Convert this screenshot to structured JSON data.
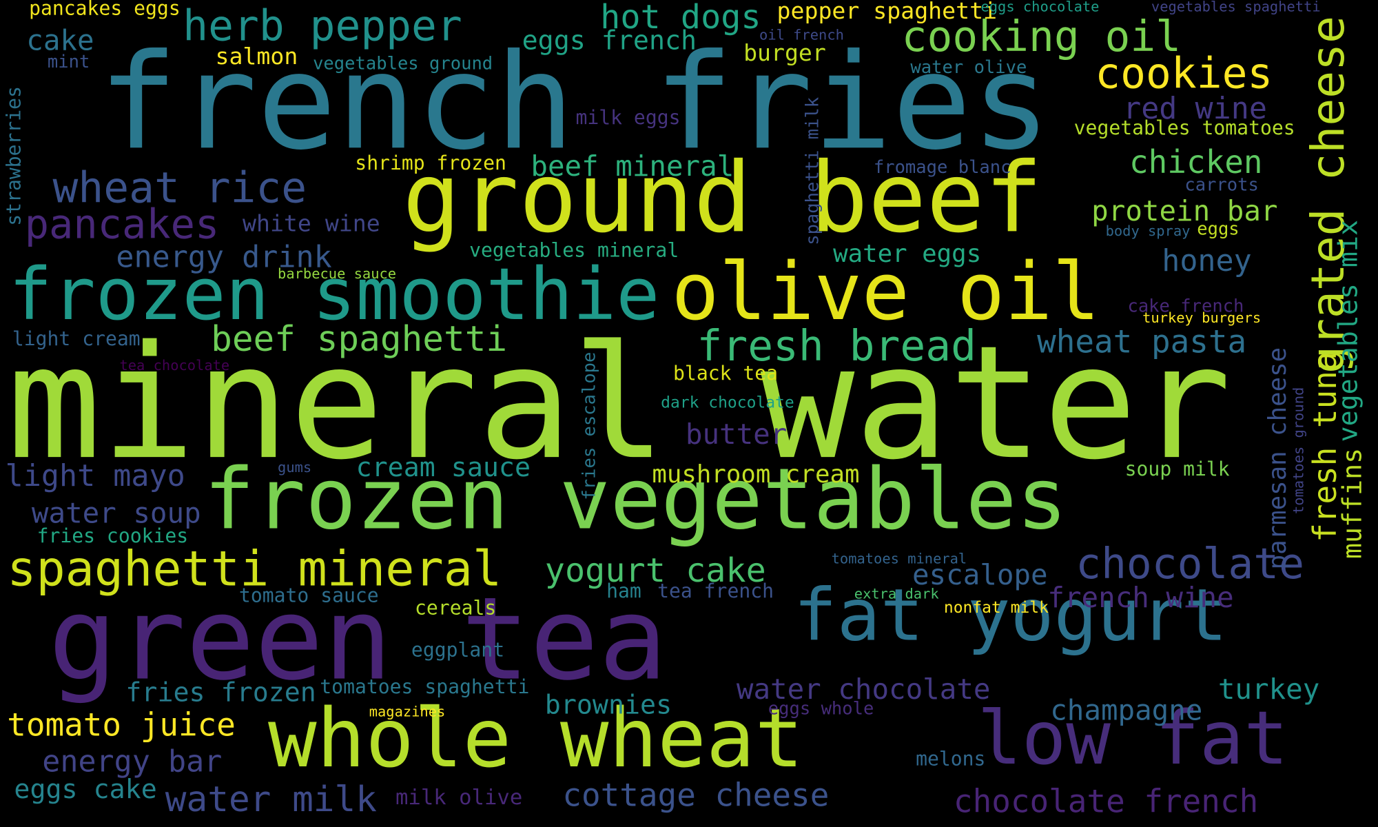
{
  "words": [
    {
      "text": "mineral water",
      "color": "#a0da39"
    },
    {
      "text": "french fries",
      "color": "#2a788e"
    },
    {
      "text": "ground beef",
      "color": "#d0e11c"
    },
    {
      "text": "green tea",
      "color": "#482475"
    },
    {
      "text": "frozen vegetables",
      "color": "#7ad151"
    },
    {
      "text": "frozen smoothie",
      "color": "#1f9a8a"
    },
    {
      "text": "olive oil",
      "color": "#e5e419"
    },
    {
      "text": "whole wheat",
      "color": "#b5de2b"
    },
    {
      "text": "fat yogurt",
      "color": "#2c728e"
    },
    {
      "text": "low fat",
      "color": "#472d7b"
    },
    {
      "text": "spaghetti mineral",
      "color": "#d0e11c"
    },
    {
      "text": "herb pepper",
      "color": "#21918c"
    },
    {
      "text": "cooking oil",
      "color": "#7ad151"
    },
    {
      "text": "grated cheese",
      "color": "#bddf26"
    },
    {
      "text": "wheat rice",
      "color": "#3b528b"
    },
    {
      "text": "pancakes",
      "color": "#482878"
    },
    {
      "text": "cookies",
      "color": "#fde725"
    },
    {
      "text": "chocolate",
      "color": "#3e4a89"
    },
    {
      "text": "fresh bread",
      "color": "#3aba76"
    },
    {
      "text": "beef spaghetti",
      "color": "#6ece58"
    },
    {
      "text": "hot dogs",
      "color": "#21a685"
    },
    {
      "text": "yogurt cake",
      "color": "#4ac16d"
    },
    {
      "text": "chocolate french",
      "color": "#482475"
    },
    {
      "text": "cottage cheese",
      "color": "#3b528b"
    },
    {
      "text": "water milk",
      "color": "#3e4a89"
    },
    {
      "text": "tomato juice",
      "color": "#fde725"
    },
    {
      "text": "energy drink",
      "color": "#38598c"
    },
    {
      "text": "fresh tuna",
      "color": "#c8e020"
    },
    {
      "text": "muffins",
      "color": "#bddf26"
    },
    {
      "text": "vegetables mix",
      "color": "#22a884"
    },
    {
      "text": "parmesan cheese",
      "color": "#3b528b"
    },
    {
      "text": "water chocolate",
      "color": "#443983"
    },
    {
      "text": "water soup",
      "color": "#3e4a89"
    },
    {
      "text": "light mayo",
      "color": "#3e4989"
    },
    {
      "text": "cream sauce",
      "color": "#20928c"
    },
    {
      "text": "mushroom cream",
      "color": "#c2df23"
    },
    {
      "text": "chicken",
      "color": "#5ec962"
    },
    {
      "text": "protein bar",
      "color": "#8fd744"
    },
    {
      "text": "honey",
      "color": "#33638d"
    },
    {
      "text": "wheat pasta",
      "color": "#2d708e"
    },
    {
      "text": "red wine",
      "color": "#443983"
    },
    {
      "text": "french wine",
      "color": "#472d7b"
    },
    {
      "text": "escalope",
      "color": "#35608d"
    },
    {
      "text": "turkey",
      "color": "#20928c"
    },
    {
      "text": "champagne",
      "color": "#31688e"
    },
    {
      "text": "brownies",
      "color": "#23898e"
    },
    {
      "text": "energy bar",
      "color": "#414487"
    },
    {
      "text": "eggs cake",
      "color": "#25848e"
    },
    {
      "text": "fries frozen",
      "color": "#287c8e"
    },
    {
      "text": "beef mineral",
      "color": "#2db27d"
    },
    {
      "text": "butter",
      "color": "#46327e"
    },
    {
      "text": "cake",
      "color": "#2c728e"
    },
    {
      "text": "eggs french",
      "color": "#20a386"
    },
    {
      "text": "salmon",
      "color": "#fde725"
    },
    {
      "text": "burger",
      "color": "#c2df23"
    },
    {
      "text": "pepper spaghetti",
      "color": "#fde725"
    },
    {
      "text": "pancakes eggs",
      "color": "#f1e51d"
    },
    {
      "text": "vegetables tomatoes",
      "color": "#b5de2b"
    },
    {
      "text": "white wine",
      "color": "#404688"
    },
    {
      "text": "shrimp frozen",
      "color": "#e5e419"
    },
    {
      "text": "water eggs",
      "color": "#24aa83"
    },
    {
      "text": "strawberries",
      "color": "#2c728e"
    },
    {
      "text": "spaghetti milk",
      "color": "#3b528b"
    },
    {
      "text": "fries escalope",
      "color": "#2a788e"
    },
    {
      "text": "black tea",
      "color": "#dde318"
    },
    {
      "text": "light cream",
      "color": "#33638d"
    },
    {
      "text": "vegetables mineral",
      "color": "#27ad81"
    },
    {
      "text": "tomato sauce",
      "color": "#2e6e8e"
    },
    {
      "text": "cereals",
      "color": "#b5de2b"
    },
    {
      "text": "ham",
      "color": "#26828e"
    },
    {
      "text": "tea french",
      "color": "#3b528b"
    },
    {
      "text": "eggplant",
      "color": "#2c728e"
    },
    {
      "text": "tomatoes spaghetti",
      "color": "#2a788e"
    },
    {
      "text": "mint",
      "color": "#3b528b"
    },
    {
      "text": "milk eggs",
      "color": "#46337f"
    },
    {
      "text": "vegetables ground",
      "color": "#25848e"
    },
    {
      "text": "fromage blanc",
      "color": "#3b528b"
    },
    {
      "text": "carrots",
      "color": "#3b528b"
    },
    {
      "text": "soup milk",
      "color": "#7ad151"
    },
    {
      "text": "fries cookies",
      "color": "#22a884"
    },
    {
      "text": "dark chocolate",
      "color": "#1fa188"
    },
    {
      "text": "cake french",
      "color": "#482878"
    },
    {
      "text": "eggs whole",
      "color": "#472d7b"
    },
    {
      "text": "nonfat milk",
      "color": "#fde725"
    },
    {
      "text": "extra dark",
      "color": "#4ac16d"
    },
    {
      "text": "melons",
      "color": "#31688e"
    },
    {
      "text": "magazines",
      "color": "#fde725"
    },
    {
      "text": "milk olive",
      "color": "#482878"
    },
    {
      "text": "body spray",
      "color": "#31688e"
    },
    {
      "text": "eggs",
      "color": "#c2df23"
    },
    {
      "text": "turkey burgers",
      "color": "#fde725"
    },
    {
      "text": "water olive",
      "color": "#2a788e"
    },
    {
      "text": "oil french",
      "color": "#3e4a89"
    },
    {
      "text": "eggs chocolate",
      "color": "#1f9e89"
    },
    {
      "text": "vegetables spaghetti",
      "color": "#414487"
    },
    {
      "text": "tomatoes mineral",
      "color": "#33638d"
    },
    {
      "text": "tomatoes ground",
      "color": "#414487"
    },
    {
      "text": "barbecue sauce",
      "color": "#95d840"
    },
    {
      "text": "tea chocolate",
      "color": "#440154"
    },
    {
      "text": "gums",
      "color": "#3b528b"
    }
  ]
}
